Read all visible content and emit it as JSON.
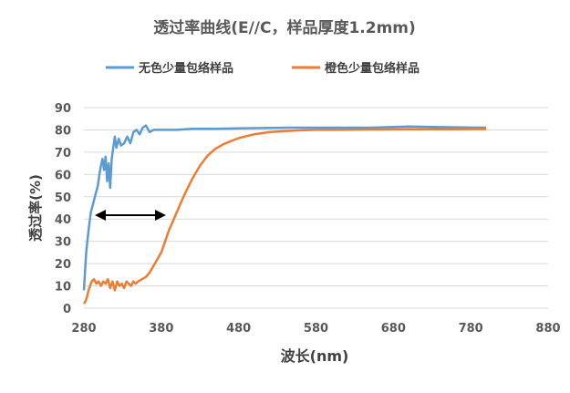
{
  "chart_data": {
    "type": "line",
    "title": "透过率曲线(E//C，样品厚度1.2mm)",
    "xlabel": "波长(nm)",
    "ylabel": "透过率(%)",
    "xlim": [
      280,
      880
    ],
    "ylim": [
      0,
      90
    ],
    "xticks": [
      280,
      380,
      480,
      580,
      680,
      780,
      880
    ],
    "yticks": [
      0,
      10,
      20,
      30,
      40,
      50,
      60,
      70,
      80,
      90
    ],
    "grid": "horizontal",
    "legend_position": "top",
    "annotation": "double-headed arrow spanning approximately 295–385 nm at 40%",
    "series": [
      {
        "name": "无色少量包络样品",
        "color": "#5b9bd5",
        "x": [
          280,
          283,
          286,
          289,
          292,
          295,
          298,
          300,
          302,
          304,
          306,
          308,
          310,
          312,
          314,
          316,
          318,
          320,
          322,
          325,
          328,
          332,
          336,
          340,
          344,
          348,
          352,
          356,
          360,
          365,
          370,
          380,
          400,
          420,
          450,
          500,
          550,
          600,
          650,
          700,
          750,
          800
        ],
        "values": [
          8,
          25,
          35,
          43,
          47,
          51,
          55,
          60,
          64,
          67,
          62,
          68,
          57,
          65,
          54,
          67,
          72,
          77,
          72,
          76,
          73,
          74,
          77,
          74,
          79,
          80,
          78,
          81,
          82,
          79,
          80,
          80,
          80,
          80.5,
          80.5,
          80.8,
          81,
          81,
          81,
          81.5,
          81.2,
          81
        ]
      },
      {
        "name": "橙色少量包络样品",
        "color": "#ed7d31",
        "x": [
          280,
          282,
          284,
          286,
          288,
          290,
          293,
          296,
          299,
          302,
          305,
          308,
          311,
          314,
          317,
          320,
          323,
          326,
          329,
          332,
          335,
          338,
          341,
          344,
          347,
          350,
          355,
          360,
          365,
          370,
          375,
          380,
          385,
          390,
          395,
          400,
          410,
          420,
          430,
          440,
          450,
          460,
          470,
          480,
          490,
          500,
          520,
          540,
          560,
          580,
          600,
          650,
          700,
          750,
          800
        ],
        "values": [
          2,
          3,
          5,
          8,
          10,
          12,
          13,
          11,
          12,
          10,
          12,
          11,
          13,
          9,
          12,
          8,
          12,
          10,
          11,
          9,
          12,
          11,
          10,
          12,
          11,
          12,
          13,
          14,
          16,
          19,
          22,
          25,
          30,
          35,
          39,
          43,
          51,
          58,
          64,
          68.5,
          71.5,
          73.5,
          75,
          76.3,
          77.2,
          78,
          79,
          79.5,
          79.8,
          80,
          80,
          80.2,
          80.3,
          80.3,
          80.4
        ]
      }
    ]
  }
}
